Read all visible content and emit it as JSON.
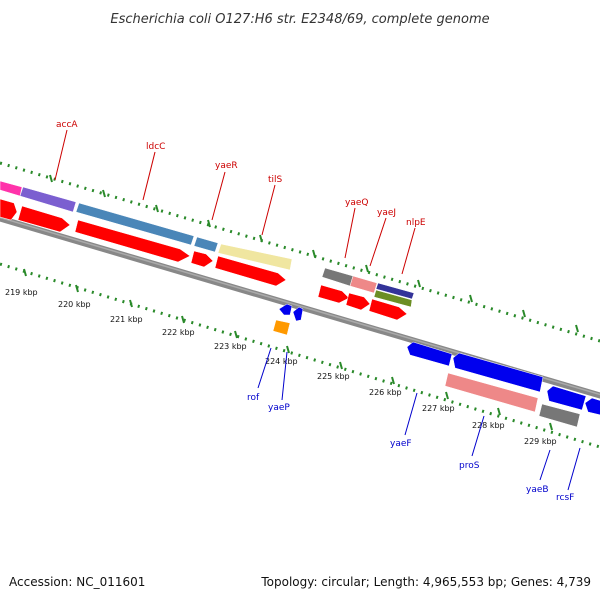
{
  "title": "Escherichia coli O127:H6 str. E2348/69, complete genome",
  "footer": {
    "accession": "Accession: NC_011601",
    "summary": "Topology: circular; Length: 4,965,553 bp; Genes: 4,739"
  },
  "scale_labels": [
    "219 kbp",
    "220 kbp",
    "221 kbp",
    "222 kbp",
    "223 kbp",
    "224 kbp",
    "225 kbp",
    "226 kbp",
    "227 kbp",
    "228 kbp",
    "229 kbp"
  ],
  "genes_forward": [
    {
      "name": "accA"
    },
    {
      "name": "ldcC"
    },
    {
      "name": "yaeR"
    },
    {
      "name": "tilS"
    },
    {
      "name": "yaeQ"
    },
    {
      "name": "yaeJ"
    },
    {
      "name": "nlpE"
    }
  ],
  "genes_reverse": [
    {
      "name": "rof"
    },
    {
      "name": "yaeP"
    },
    {
      "name": "yaeF"
    },
    {
      "name": "proS"
    },
    {
      "name": "yaeB"
    },
    {
      "name": "rcsF"
    }
  ],
  "colors": {
    "cds": "#ff0000",
    "cds_reverse": "#0000ee",
    "backbone": "#888888",
    "tick": "#2a8a2a",
    "label_forward": "#cc0000",
    "label_reverse": "#0000cc",
    "cog_magenta": "#ff33aa",
    "cog_purple": "#7b5fd0",
    "cog_steel": "#4a86b8",
    "cog_khaki": "#f0e6a0",
    "cog_grey": "#777777",
    "cog_pink": "#ee8888",
    "cog_navy": "#333399",
    "cog_olive": "#6b8e23",
    "rna_orange": "#ff9900"
  }
}
